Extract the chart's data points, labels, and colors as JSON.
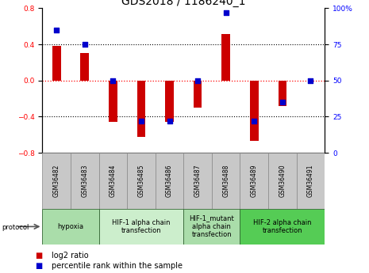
{
  "title": "GDS2018 / 1186240_1",
  "samples": [
    "GSM36482",
    "GSM36483",
    "GSM36484",
    "GSM36485",
    "GSM36486",
    "GSM36487",
    "GSM36488",
    "GSM36489",
    "GSM36490",
    "GSM36491"
  ],
  "log2_ratio": [
    0.38,
    0.3,
    -0.46,
    -0.62,
    -0.46,
    -0.3,
    0.51,
    -0.67,
    -0.28,
    0.0
  ],
  "percentile_rank": [
    85,
    75,
    50,
    22,
    22,
    50,
    97,
    22,
    35,
    50
  ],
  "ylim_left": [
    -0.8,
    0.8
  ],
  "ylim_right": [
    0,
    100
  ],
  "yticks_left": [
    -0.8,
    -0.4,
    0.0,
    0.4,
    0.8
  ],
  "yticks_right": [
    0,
    25,
    50,
    75,
    100
  ],
  "ytick_labels_right": [
    "0",
    "25",
    "50",
    "75",
    "100%"
  ],
  "bar_color": "#cc0000",
  "dot_color": "#0000cc",
  "plot_bg_color": "#ffffff",
  "sample_box_color": "#c8c8c8",
  "protocols": [
    {
      "label": "hypoxia",
      "start": 0,
      "end": 2,
      "color": "#aaddaa"
    },
    {
      "label": "HIF-1 alpha chain\ntransfection",
      "start": 2,
      "end": 5,
      "color": "#cceecc"
    },
    {
      "label": "HIF-1_mutant\nalpha chain\ntransfection",
      "start": 5,
      "end": 7,
      "color": "#aaddaa"
    },
    {
      "label": "HIF-2 alpha chain\ntransfection",
      "start": 7,
      "end": 10,
      "color": "#55cc55"
    }
  ],
  "legend_items": [
    {
      "label": "log2 ratio",
      "color": "#cc0000"
    },
    {
      "label": "percentile rank within the sample",
      "color": "#0000cc"
    }
  ],
  "title_fontsize": 10,
  "tick_fontsize": 6.5,
  "sample_fontsize": 5.5,
  "proto_fontsize": 6.0,
  "legend_fontsize": 7.0,
  "bar_width": 0.3
}
